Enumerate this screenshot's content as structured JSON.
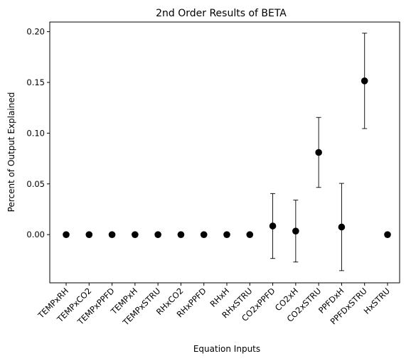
{
  "chart_data": {
    "type": "scatter",
    "title": "2nd Order Results of BETA",
    "xlabel": "Equation Inputs",
    "ylabel": "Percent of Output Explained",
    "categories": [
      "TEMPxRH",
      "TEMPxCO2",
      "TEMPxPPFD",
      "TEMPxH",
      "TEMPxSTRU",
      "RHxCO2",
      "RHxPPFD",
      "RHxH",
      "RHxSTRU",
      "CO2xPPFD",
      "CO2xH",
      "CO2xSTRU",
      "PPFDxH",
      "PPFDxSTRU",
      "HxSTRU"
    ],
    "series": [
      {
        "values": [
          0,
          0,
          0,
          0,
          0,
          0,
          0,
          0,
          0,
          0.0085,
          0.0035,
          0.081,
          0.0075,
          0.1515,
          0
        ],
        "error": [
          0,
          0,
          0,
          0,
          0,
          0,
          0,
          0,
          0,
          0.032,
          0.0305,
          0.0345,
          0.043,
          0.047,
          0
        ]
      }
    ],
    "yticks": [
      0.0,
      0.05,
      0.1,
      0.15,
      0.2
    ],
    "ytick_labels": [
      "0.00",
      "0.05",
      "0.10",
      "0.15",
      "0.20"
    ],
    "ylim": [
      -0.0475,
      0.2095
    ],
    "grid": false,
    "marker_color": "#000000"
  }
}
